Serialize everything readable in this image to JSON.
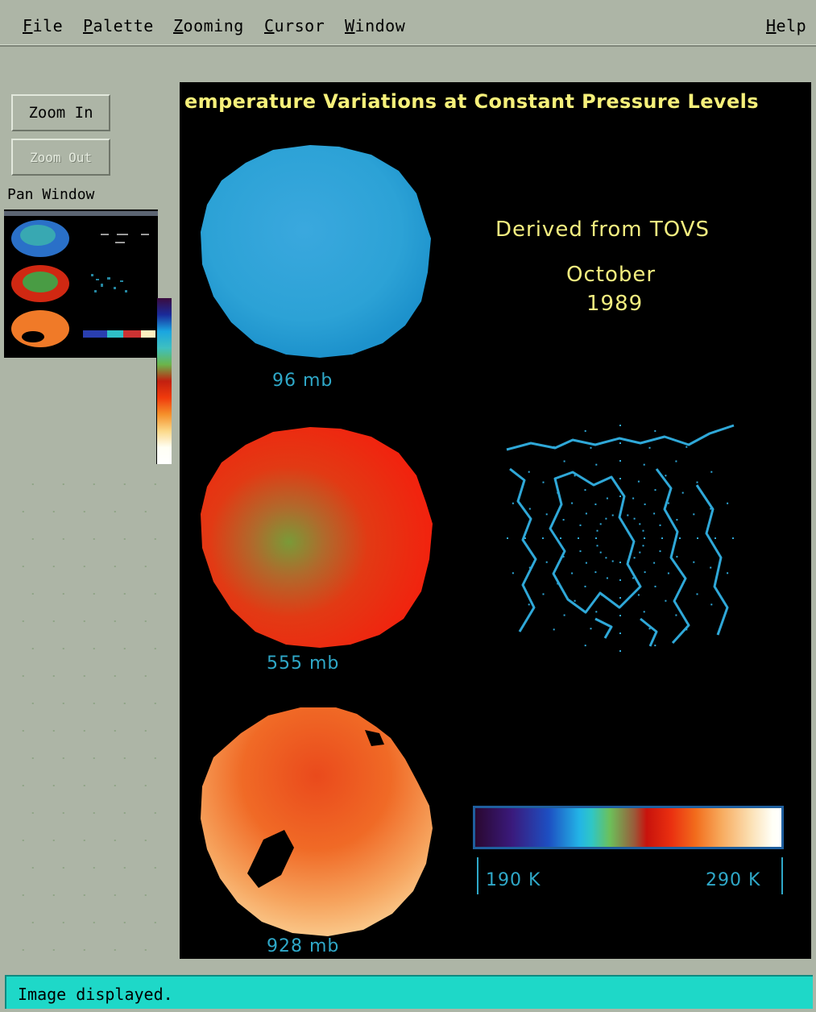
{
  "menubar": {
    "items": [
      {
        "mnemonic": "F",
        "rest": "ile"
      },
      {
        "mnemonic": "P",
        "rest": "alette"
      },
      {
        "mnemonic": "Z",
        "rest": "ooming"
      },
      {
        "mnemonic": "C",
        "rest": "ursor"
      },
      {
        "mnemonic": "W",
        "rest": "indow"
      }
    ],
    "help": {
      "mnemonic": "H",
      "rest": "elp"
    }
  },
  "toolbar": {
    "zoom_in_label": "Zoom In",
    "zoom_out_label": "Zoom Out"
  },
  "pan": {
    "label": "Pan Window"
  },
  "image": {
    "title": "emperature Variations at Constant Pressure Levels",
    "derived": "Derived from TOVS",
    "month": "October",
    "year": "1989",
    "levels": [
      "96 mb",
      "555 mb",
      "928 mb"
    ],
    "scale_min": "190 K",
    "scale_max": "290 K"
  },
  "status": {
    "message": "Image displayed."
  },
  "colors": {
    "window_bg": "#adb5a6",
    "title_text": "#f6f07a",
    "label_text": "#2fa8c8",
    "status_bg": "#1ed8c8"
  }
}
